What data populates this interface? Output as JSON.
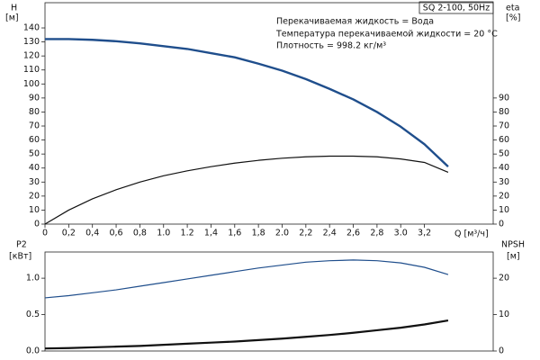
{
  "chart_data": [
    {
      "type": "line",
      "title": "SQ 2-100, 50Hz",
      "annotations": [
        "Перекачиваемая жидкость = Вода",
        "Температура перекачиваемой жидкости = 20 °C",
        "Плотность = 998.2 кг/м³"
      ],
      "x_label": "Q [м³/ч]",
      "y_label": "H",
      "y_unit": "[м]",
      "y2_label": "eta",
      "y2_unit": "[%]",
      "x": [
        0,
        0.2,
        0.4,
        0.6,
        0.8,
        1.0,
        1.2,
        1.4,
        1.6,
        1.8,
        2.0,
        2.2,
        2.4,
        2.6,
        2.8,
        3.0,
        3.2,
        3.4
      ],
      "xlim": [
        0,
        3.78
      ],
      "xticks": [
        0,
        {
          "value": 0.2,
          "label": "0,2"
        },
        {
          "value": 0.4,
          "label": "0,4"
        },
        {
          "value": 0.6,
          "label": "0,6"
        },
        {
          "value": 0.8,
          "label": "0,8"
        },
        {
          "value": 1.0,
          "label": "1.0"
        },
        {
          "value": 1.2,
          "label": "1.2"
        },
        {
          "value": 1.4,
          "label": "1,4"
        },
        {
          "value": 1.6,
          "label": "1,6"
        },
        {
          "value": 1.8,
          "label": "1,8"
        },
        {
          "value": 2.0,
          "label": "2.0"
        },
        {
          "value": 2.2,
          "label": "2,2"
        },
        {
          "value": 2.4,
          "label": "2,4"
        },
        {
          "value": 2.6,
          "label": "2,6"
        },
        {
          "value": 2.8,
          "label": "2,8"
        },
        {
          "value": 3.0,
          "label": "3.0"
        },
        {
          "value": 3.2,
          "label": "3,2"
        }
      ],
      "ylim": [
        0,
        158
      ],
      "yticks": [
        0,
        10,
        20,
        30,
        40,
        50,
        60,
        70,
        80,
        90,
        100,
        110,
        120,
        130,
        140
      ],
      "y2lim": [
        0,
        158
      ],
      "y2ticks": [
        0,
        10,
        20,
        30,
        40,
        50,
        60,
        70,
        80,
        90
      ],
      "series": [
        {
          "name": "H",
          "color": "#1f4e8c",
          "width": 2.4,
          "values": [
            132,
            132,
            131.5,
            130.5,
            129,
            127,
            125,
            122,
            119,
            114.5,
            109.5,
            103.5,
            96.5,
            89,
            80,
            69.5,
            57,
            41
          ]
        },
        {
          "name": "eta",
          "axis": "y2",
          "color": "#111111",
          "width": 1.2,
          "values": [
            0,
            10,
            18,
            24.5,
            30,
            34.5,
            38,
            41,
            43.5,
            45.5,
            47,
            48,
            48.5,
            48.5,
            48,
            46.5,
            44,
            37
          ]
        }
      ]
    },
    {
      "type": "line",
      "y_label": "P2",
      "y_unit": "[кВт]",
      "y2_label": "NPSH",
      "y2_unit": "[м]",
      "x": [
        0,
        0.2,
        0.4,
        0.6,
        0.8,
        1.0,
        1.2,
        1.4,
        1.6,
        1.8,
        2.0,
        2.2,
        2.4,
        2.6,
        2.8,
        3.0,
        3.2,
        3.4
      ],
      "xlim": [
        0,
        3.78
      ],
      "ylim": [
        0,
        1.36
      ],
      "yticks": [
        {
          "value": 0,
          "label": "0.0"
        },
        {
          "value": 0.5,
          "label": "0.5"
        },
        {
          "value": 1,
          "label": "1.0"
        }
      ],
      "y2lim": [
        0,
        27.2
      ],
      "y2ticks": [
        0,
        10,
        20
      ],
      "series": [
        {
          "name": "P2",
          "color": "#1f4e8c",
          "width": 1.2,
          "values": [
            0.73,
            0.76,
            0.8,
            0.84,
            0.89,
            0.94,
            0.99,
            1.04,
            1.09,
            1.14,
            1.18,
            1.22,
            1.24,
            1.25,
            1.24,
            1.21,
            1.15,
            1.05
          ]
        },
        {
          "name": "NPSH",
          "axis": "y2",
          "color": "#111111",
          "width": 2.2,
          "values": [
            0.7,
            0.8,
            1.0,
            1.2,
            1.4,
            1.7,
            2.0,
            2.3,
            2.6,
            3.0,
            3.4,
            3.9,
            4.4,
            5.0,
            5.7,
            6.4,
            7.3,
            8.4
          ]
        }
      ]
    }
  ]
}
